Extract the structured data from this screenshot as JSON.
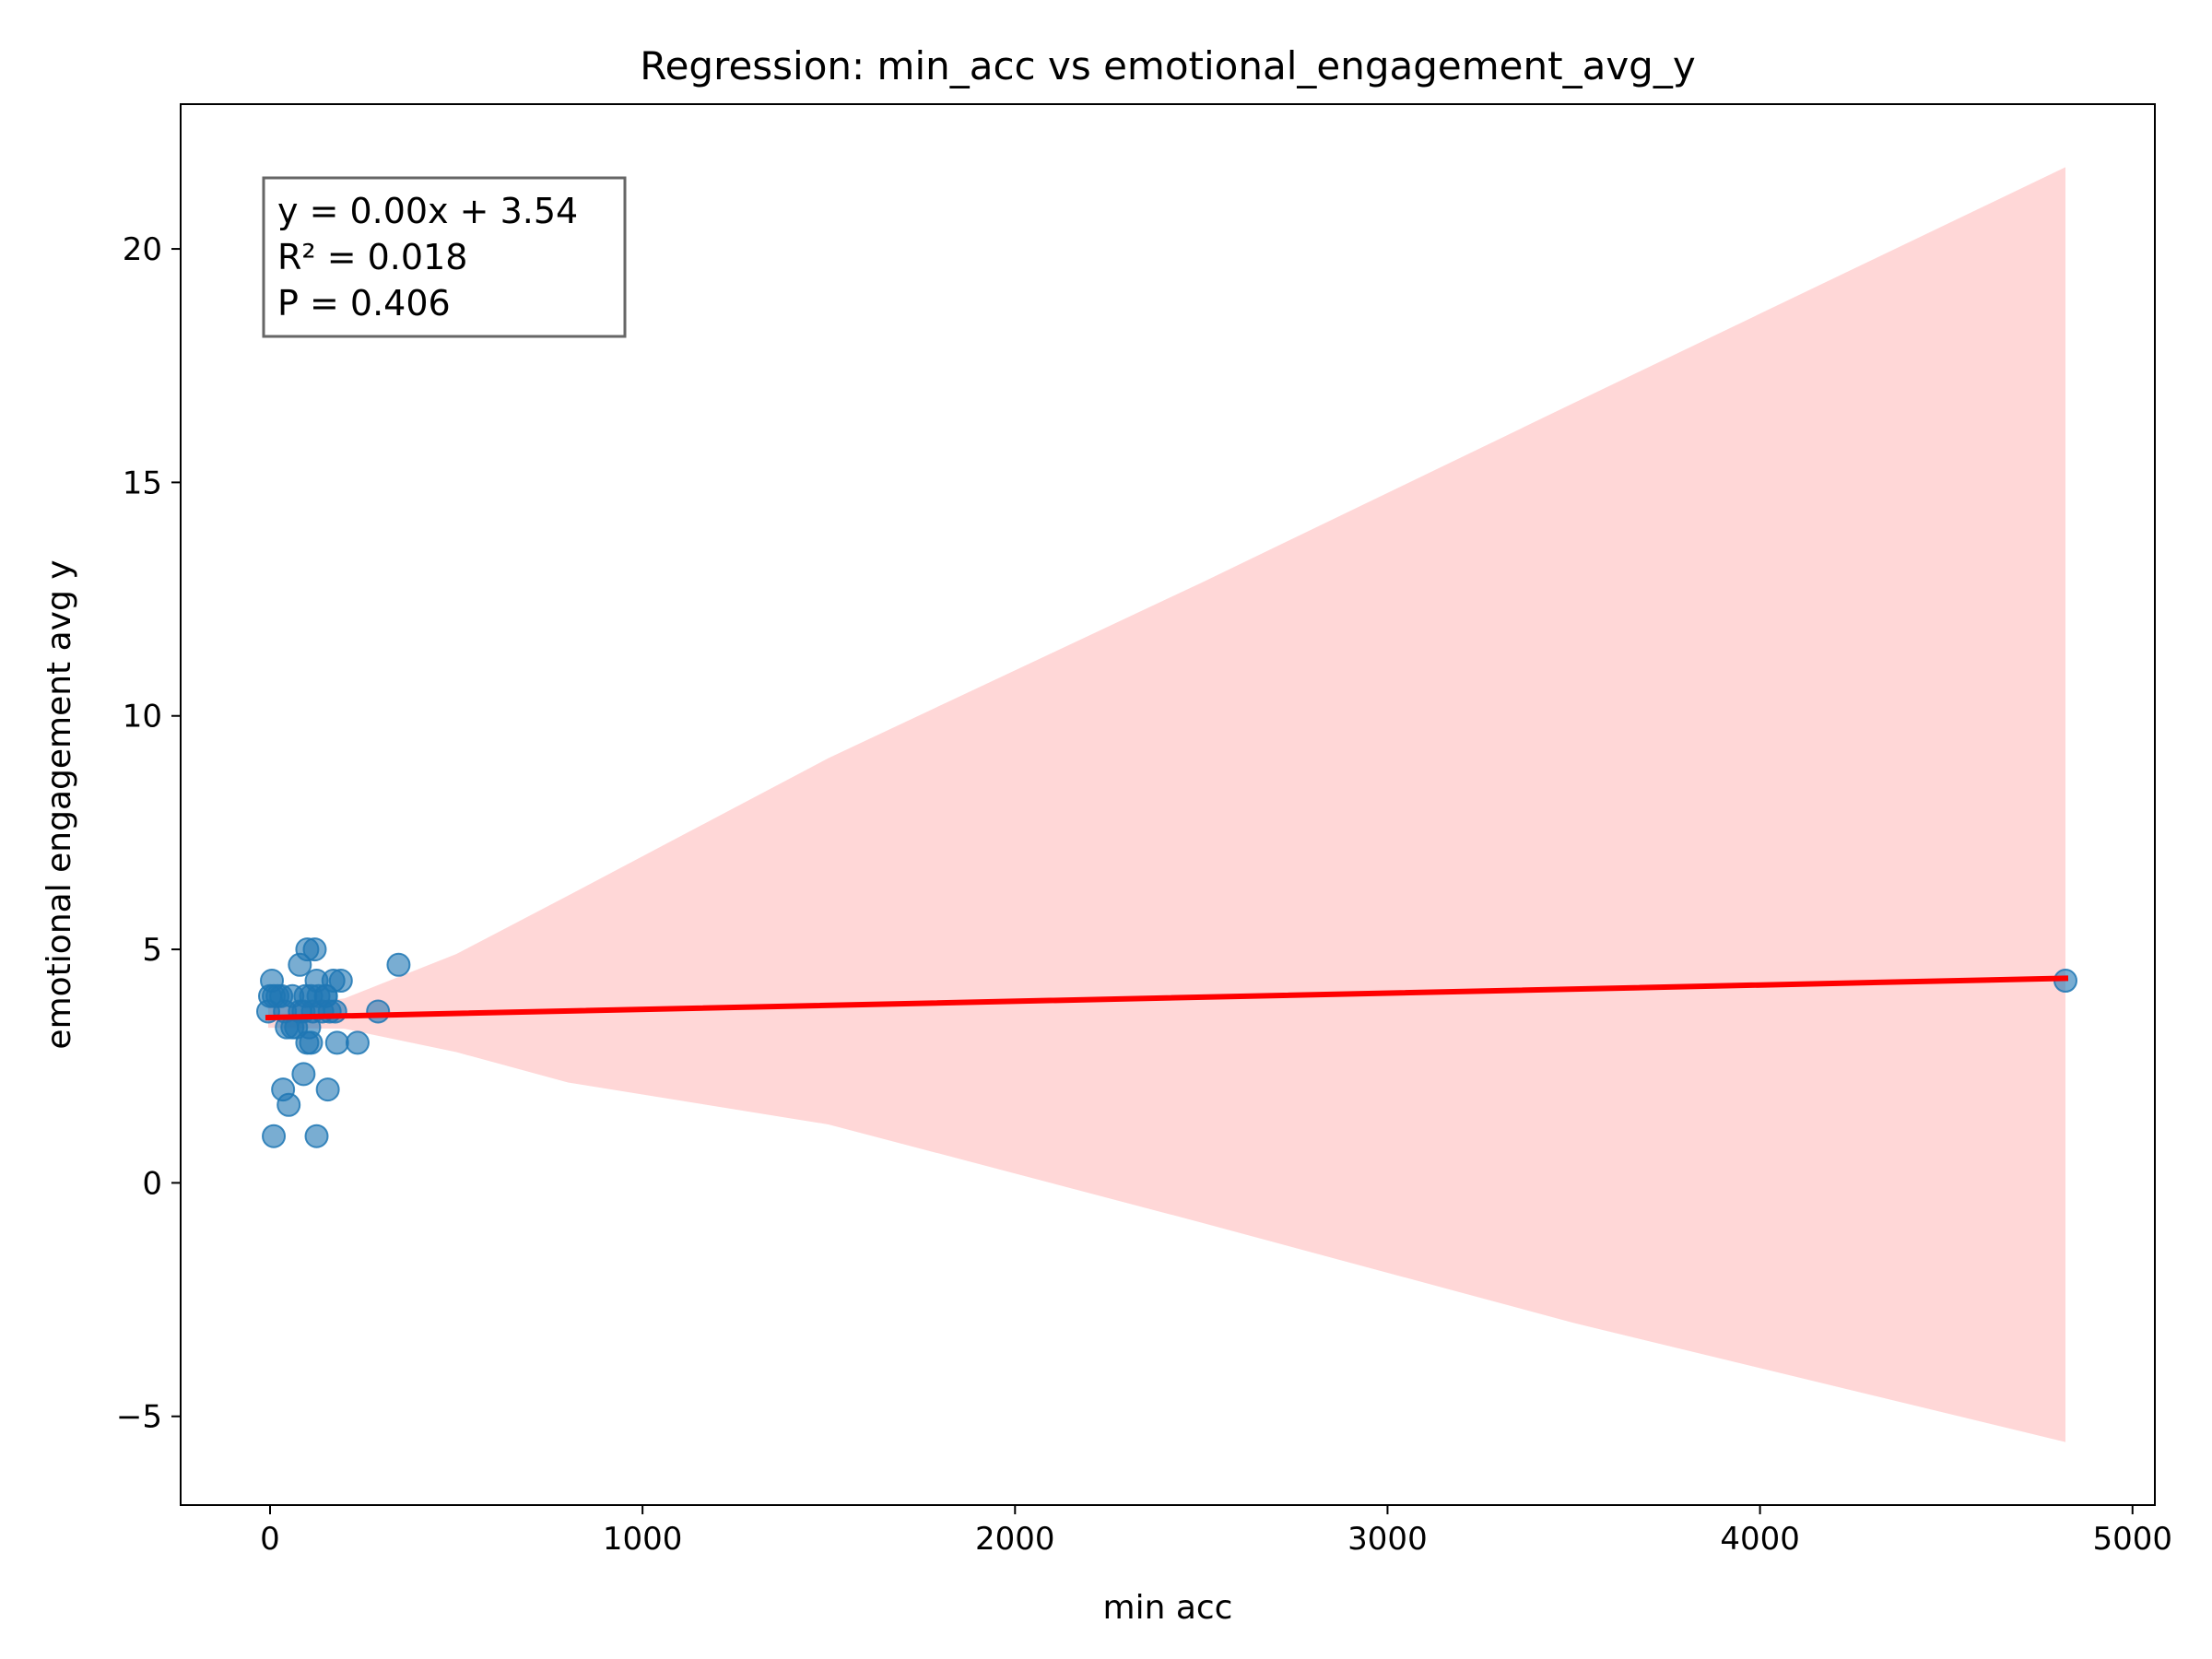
{
  "chart_data": {
    "type": "scatter",
    "title": "Regression: min_acc vs emotional_engagement_avg_y",
    "xlabel": "min acc",
    "ylabel": "emotional engagement avg y",
    "xlim": [
      -240,
      5060
    ],
    "ylim": [
      -6.9,
      23.1
    ],
    "xticks": [
      0,
      1000,
      2000,
      3000,
      4000,
      5000
    ],
    "xtick_labels": [
      "0",
      "1000",
      "2000",
      "3000",
      "4000",
      "5000"
    ],
    "yticks": [
      -5,
      0,
      5,
      10,
      15,
      20
    ],
    "ytick_labels": [
      "−5",
      "0",
      "5",
      "10",
      "15",
      "20"
    ],
    "grid": false,
    "annotation": {
      "placement": "top-left",
      "lines": [
        "y = 0.00x + 3.54",
        "R² = 0.018",
        "P = 0.406"
      ]
    },
    "series": [
      {
        "kind": "scatter",
        "color": "#1f77b4",
        "points": [
          [
            0,
            4.0
          ],
          [
            5,
            4.33
          ],
          [
            10,
            4.0
          ],
          [
            20,
            4.0
          ],
          [
            30,
            4.0
          ],
          [
            40,
            3.67
          ],
          [
            45,
            3.33
          ],
          [
            -5,
            3.67
          ],
          [
            60,
            4.0
          ],
          [
            70,
            3.33
          ],
          [
            80,
            4.67
          ],
          [
            90,
            3.67
          ],
          [
            95,
            4.0
          ],
          [
            100,
            5.0
          ],
          [
            105,
            3.33
          ],
          [
            110,
            4.0
          ],
          [
            115,
            3.67
          ],
          [
            120,
            5.0
          ],
          [
            125,
            4.33
          ],
          [
            130,
            4.0
          ],
          [
            110,
            3.0
          ],
          [
            100,
            3.0
          ],
          [
            140,
            3.67
          ],
          [
            150,
            4.0
          ],
          [
            160,
            3.67
          ],
          [
            150,
            4.0
          ],
          [
            80,
            3.67
          ],
          [
            60,
            3.33
          ],
          [
            155,
            2.0
          ],
          [
            90,
            2.33
          ],
          [
            35,
            2.0
          ],
          [
            50,
            1.67
          ],
          [
            10,
            1.0
          ],
          [
            125,
            1.0
          ],
          [
            170,
            4.33
          ],
          [
            175,
            3.67
          ],
          [
            180,
            3.0
          ],
          [
            190,
            4.33
          ],
          [
            235,
            3.0
          ],
          [
            290,
            3.67
          ],
          [
            345,
            4.67
          ],
          [
            4820,
            4.33
          ]
        ]
      },
      {
        "kind": "regression-line",
        "color": "#ff0000",
        "points": [
          [
            -5,
            3.54
          ],
          [
            4820,
            4.38
          ]
        ]
      },
      {
        "kind": "confidence-band",
        "color": "#ffd7d7",
        "upper": [
          [
            -5,
            3.76
          ],
          [
            200,
            3.95
          ],
          [
            500,
            4.9
          ],
          [
            800,
            6.15
          ],
          [
            1500,
            9.1
          ],
          [
            2500,
            12.85
          ],
          [
            3500,
            16.7
          ],
          [
            4820,
            21.75
          ]
        ],
        "lower": [
          [
            -5,
            3.32
          ],
          [
            200,
            3.3
          ],
          [
            500,
            2.8
          ],
          [
            800,
            2.15
          ],
          [
            1500,
            1.25
          ],
          [
            2500,
            -0.85
          ],
          [
            3500,
            -3.0
          ],
          [
            4820,
            -5.55
          ]
        ]
      }
    ]
  }
}
